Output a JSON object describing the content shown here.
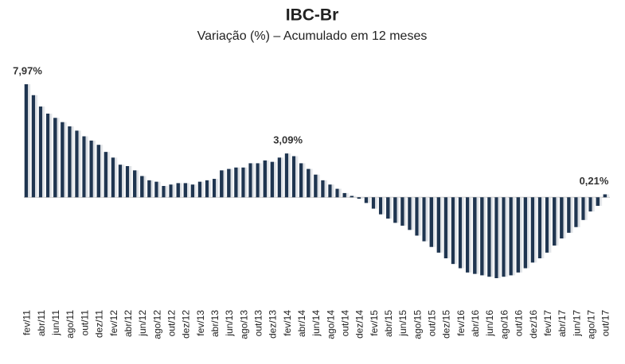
{
  "chart_data": {
    "type": "bar",
    "title": "IBC-Br",
    "subtitle": "Variação (%) – Acumulado em 12 meses",
    "categories": [
      "fev/11",
      null,
      "abr/11",
      null,
      "jun/11",
      null,
      "ago/11",
      null,
      "out/11",
      null,
      "dez/11",
      null,
      "fev/12",
      null,
      "abr/12",
      null,
      "jun/12",
      null,
      "ago/12",
      null,
      "out/12",
      null,
      "dez/12",
      null,
      "fev/13",
      null,
      "abr/13",
      null,
      "jun/13",
      null,
      "ago/13",
      null,
      "out/13",
      null,
      "dez/13",
      null,
      "fev/14",
      null,
      "abr/14",
      null,
      "jun/14",
      null,
      "ago/14",
      null,
      "out/14",
      null,
      "dez/14",
      null,
      "fev/15",
      null,
      "abr/15",
      null,
      "jun/15",
      null,
      "ago/15",
      null,
      "out/15",
      null,
      "dez/15",
      null,
      "fev/16",
      null,
      "abr/16",
      null,
      "jun/16",
      null,
      "ago/16",
      null,
      "out/16",
      null,
      "dez/16",
      null,
      "fev/17",
      null,
      "abr/17",
      null,
      "jun/17",
      null,
      "ago/17",
      null,
      "out/17"
    ],
    "values": [
      7.97,
      7.2,
      6.4,
      5.9,
      5.6,
      5.3,
      5.0,
      4.7,
      4.3,
      4.0,
      3.7,
      3.2,
      2.8,
      2.3,
      2.2,
      1.9,
      1.5,
      1.2,
      1.1,
      0.8,
      0.9,
      1.0,
      1.0,
      0.9,
      1.1,
      1.2,
      1.3,
      1.9,
      2.0,
      2.1,
      2.1,
      2.4,
      2.4,
      2.6,
      2.5,
      2.8,
      3.09,
      2.9,
      2.4,
      2.0,
      1.6,
      1.2,
      0.9,
      0.6,
      0.3,
      0.1,
      -0.1,
      -0.4,
      -0.8,
      -1.2,
      -1.5,
      -1.8,
      -2.0,
      -2.3,
      -2.7,
      -3.1,
      -3.5,
      -3.9,
      -4.3,
      -4.7,
      -5.0,
      -5.3,
      -5.4,
      -5.5,
      -5.6,
      -5.7,
      -5.6,
      -5.5,
      -5.3,
      -5.0,
      -4.6,
      -4.3,
      -3.9,
      -3.4,
      -2.9,
      -2.5,
      -2.1,
      -1.6,
      -1.0,
      -0.6,
      0.21
    ],
    "value_labels": [
      "7,97%",
      null,
      null,
      null,
      null,
      null,
      null,
      null,
      null,
      null,
      null,
      null,
      null,
      null,
      null,
      null,
      null,
      null,
      null,
      null,
      null,
      null,
      null,
      null,
      null,
      null,
      null,
      null,
      null,
      null,
      null,
      null,
      null,
      null,
      null,
      null,
      "3,09%",
      null,
      null,
      null,
      null,
      null,
      null,
      null,
      null,
      null,
      null,
      null,
      null,
      null,
      null,
      null,
      null,
      null,
      null,
      null,
      null,
      null,
      null,
      null,
      null,
      null,
      null,
      null,
      null,
      null,
      null,
      null,
      null,
      null,
      null,
      null,
      null,
      null,
      null,
      null,
      null,
      null,
      null,
      null,
      "0,21%"
    ],
    "color": "#1f3550"
  }
}
